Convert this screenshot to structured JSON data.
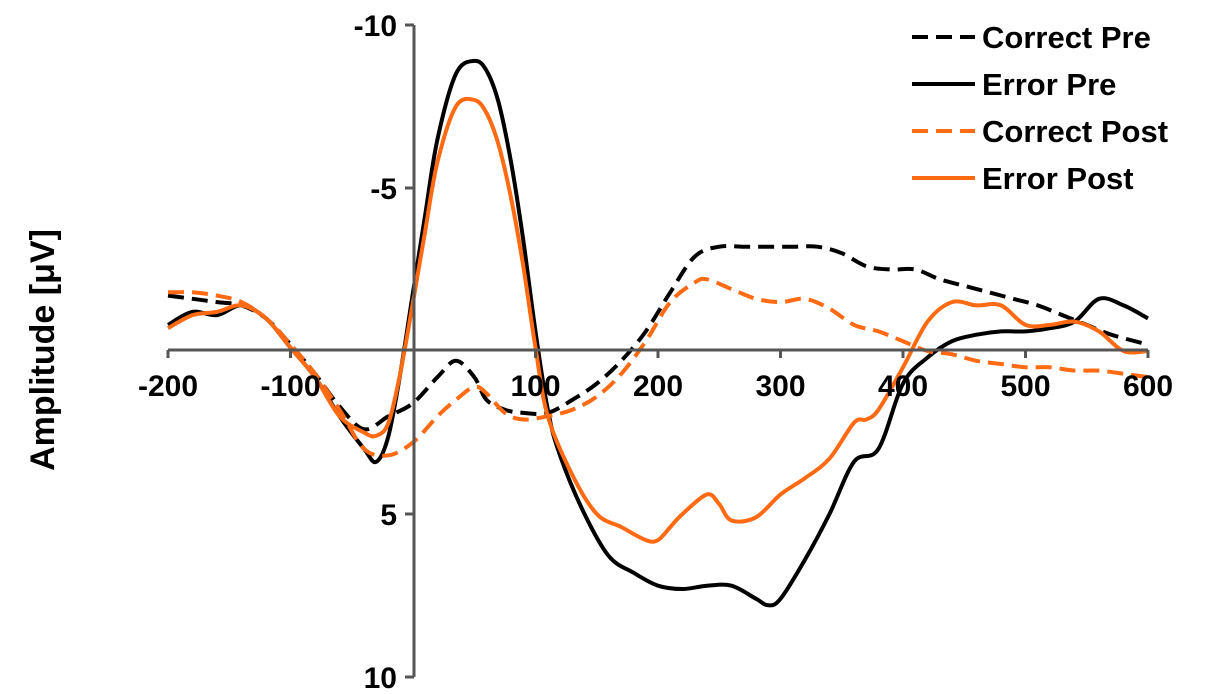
{
  "chart_data": {
    "type": "line",
    "title": "",
    "xlabel": "",
    "ylabel": "Amplitude [μV]",
    "xlim": [
      -200,
      600
    ],
    "ylim": [
      -10,
      10
    ],
    "y_inverted": true,
    "x_ticks": [
      "-200",
      "-100",
      "100",
      "200",
      "300",
      "400",
      "500",
      "600"
    ],
    "y_ticks": [
      "-10",
      "-5",
      "5",
      "10"
    ],
    "grid": false,
    "legend_position": "top-right",
    "colors": {
      "black": "#000000",
      "orange": "#ff6a13",
      "axis": "#555555"
    },
    "series": [
      {
        "name": "Correct Pre",
        "color": "#000000",
        "dash": "dashed",
        "x": [
          -200,
          -180,
          -160,
          -140,
          -120,
          -100,
          -80,
          -60,
          -40,
          -20,
          0,
          20,
          35,
          50,
          60,
          75,
          90,
          110,
          130,
          150,
          170,
          190,
          210,
          230,
          250,
          270,
          290,
          310,
          330,
          350,
          370,
          390,
          410,
          430,
          450,
          470,
          490,
          510,
          530,
          550,
          570,
          600
        ],
        "y": [
          -1.7,
          -1.6,
          -1.5,
          -1.4,
          -1.0,
          -0.2,
          0.7,
          1.7,
          2.4,
          2.0,
          1.6,
          0.8,
          0.3,
          0.8,
          1.5,
          1.8,
          1.9,
          1.9,
          1.5,
          1.0,
          0.3,
          -0.6,
          -1.8,
          -2.9,
          -3.2,
          -3.2,
          -3.2,
          -3.2,
          -3.2,
          -3.0,
          -2.6,
          -2.5,
          -2.5,
          -2.2,
          -2.0,
          -1.8,
          -1.6,
          -1.4,
          -1.1,
          -0.8,
          -0.5,
          -0.2
        ]
      },
      {
        "name": "Error Pre",
        "color": "#000000",
        "dash": "solid",
        "x": [
          -200,
          -180,
          -160,
          -140,
          -120,
          -100,
          -80,
          -60,
          -40,
          -30,
          -20,
          -10,
          0,
          10,
          20,
          35,
          50,
          60,
          70,
          80,
          90,
          100,
          110,
          120,
          140,
          160,
          180,
          200,
          220,
          240,
          260,
          280,
          290,
          300,
          320,
          340,
          360,
          380,
          400,
          420,
          440,
          460,
          480,
          500,
          520,
          540,
          560,
          580,
          600
        ],
        "y": [
          -0.8,
          -1.2,
          -1.1,
          -1.4,
          -1.0,
          -0.1,
          0.8,
          2.0,
          3.0,
          3.4,
          2.6,
          0.6,
          -1.8,
          -4.2,
          -6.5,
          -8.5,
          -8.9,
          -8.6,
          -7.6,
          -5.8,
          -3.4,
          -0.6,
          1.8,
          3.2,
          5.0,
          6.3,
          6.8,
          7.2,
          7.3,
          7.2,
          7.2,
          7.6,
          7.8,
          7.6,
          6.4,
          5.0,
          3.4,
          3.0,
          1.0,
          0.2,
          -0.3,
          -0.5,
          -0.6,
          -0.6,
          -0.7,
          -0.9,
          -1.6,
          -1.4,
          -1.0
        ]
      },
      {
        "name": "Correct Post",
        "color": "#ff6a13",
        "dash": "dashed",
        "x": [
          -200,
          -180,
          -160,
          -140,
          -120,
          -100,
          -80,
          -60,
          -40,
          -20,
          0,
          20,
          35,
          50,
          60,
          75,
          90,
          110,
          130,
          150,
          170,
          190,
          210,
          230,
          240,
          260,
          280,
          300,
          320,
          340,
          360,
          380,
          400,
          420,
          440,
          460,
          480,
          500,
          520,
          540,
          560,
          580,
          600
        ],
        "y": [
          -1.8,
          -1.8,
          -1.7,
          -1.5,
          -1.0,
          -0.2,
          0.7,
          1.8,
          3.0,
          3.2,
          2.8,
          2.0,
          1.5,
          1.1,
          1.3,
          1.9,
          2.1,
          2.0,
          1.8,
          1.4,
          0.7,
          -0.3,
          -1.5,
          -2.1,
          -2.2,
          -1.9,
          -1.6,
          -1.5,
          -1.6,
          -1.3,
          -0.8,
          -0.6,
          -0.3,
          0.0,
          0.1,
          0.3,
          0.4,
          0.5,
          0.5,
          0.6,
          0.6,
          0.7,
          0.8
        ]
      },
      {
        "name": "Error Post",
        "color": "#ff6a13",
        "dash": "solid",
        "x": [
          -200,
          -180,
          -160,
          -140,
          -120,
          -100,
          -80,
          -60,
          -40,
          -30,
          -20,
          -10,
          0,
          10,
          20,
          35,
          50,
          60,
          70,
          80,
          90,
          100,
          110,
          130,
          150,
          170,
          190,
          200,
          210,
          220,
          240,
          250,
          260,
          280,
          300,
          320,
          340,
          360,
          370,
          380,
          400,
          420,
          440,
          460,
          480,
          500,
          520,
          540,
          560,
          580,
          600
        ],
        "y": [
          -0.7,
          -1.1,
          -1.2,
          -1.4,
          -1.0,
          -0.1,
          0.8,
          2.0,
          2.5,
          2.6,
          2.2,
          0.6,
          -1.5,
          -3.7,
          -5.8,
          -7.5,
          -7.7,
          -7.3,
          -6.3,
          -4.7,
          -2.6,
          -0.1,
          2.0,
          3.8,
          5.0,
          5.4,
          5.8,
          5.8,
          5.4,
          5.0,
          4.4,
          4.7,
          5.2,
          5.1,
          4.4,
          3.9,
          3.3,
          2.2,
          2.1,
          1.8,
          0.5,
          -0.9,
          -1.5,
          -1.4,
          -1.4,
          -0.8,
          -0.8,
          -0.9,
          -0.6,
          0.0,
          0.0
        ]
      }
    ]
  }
}
